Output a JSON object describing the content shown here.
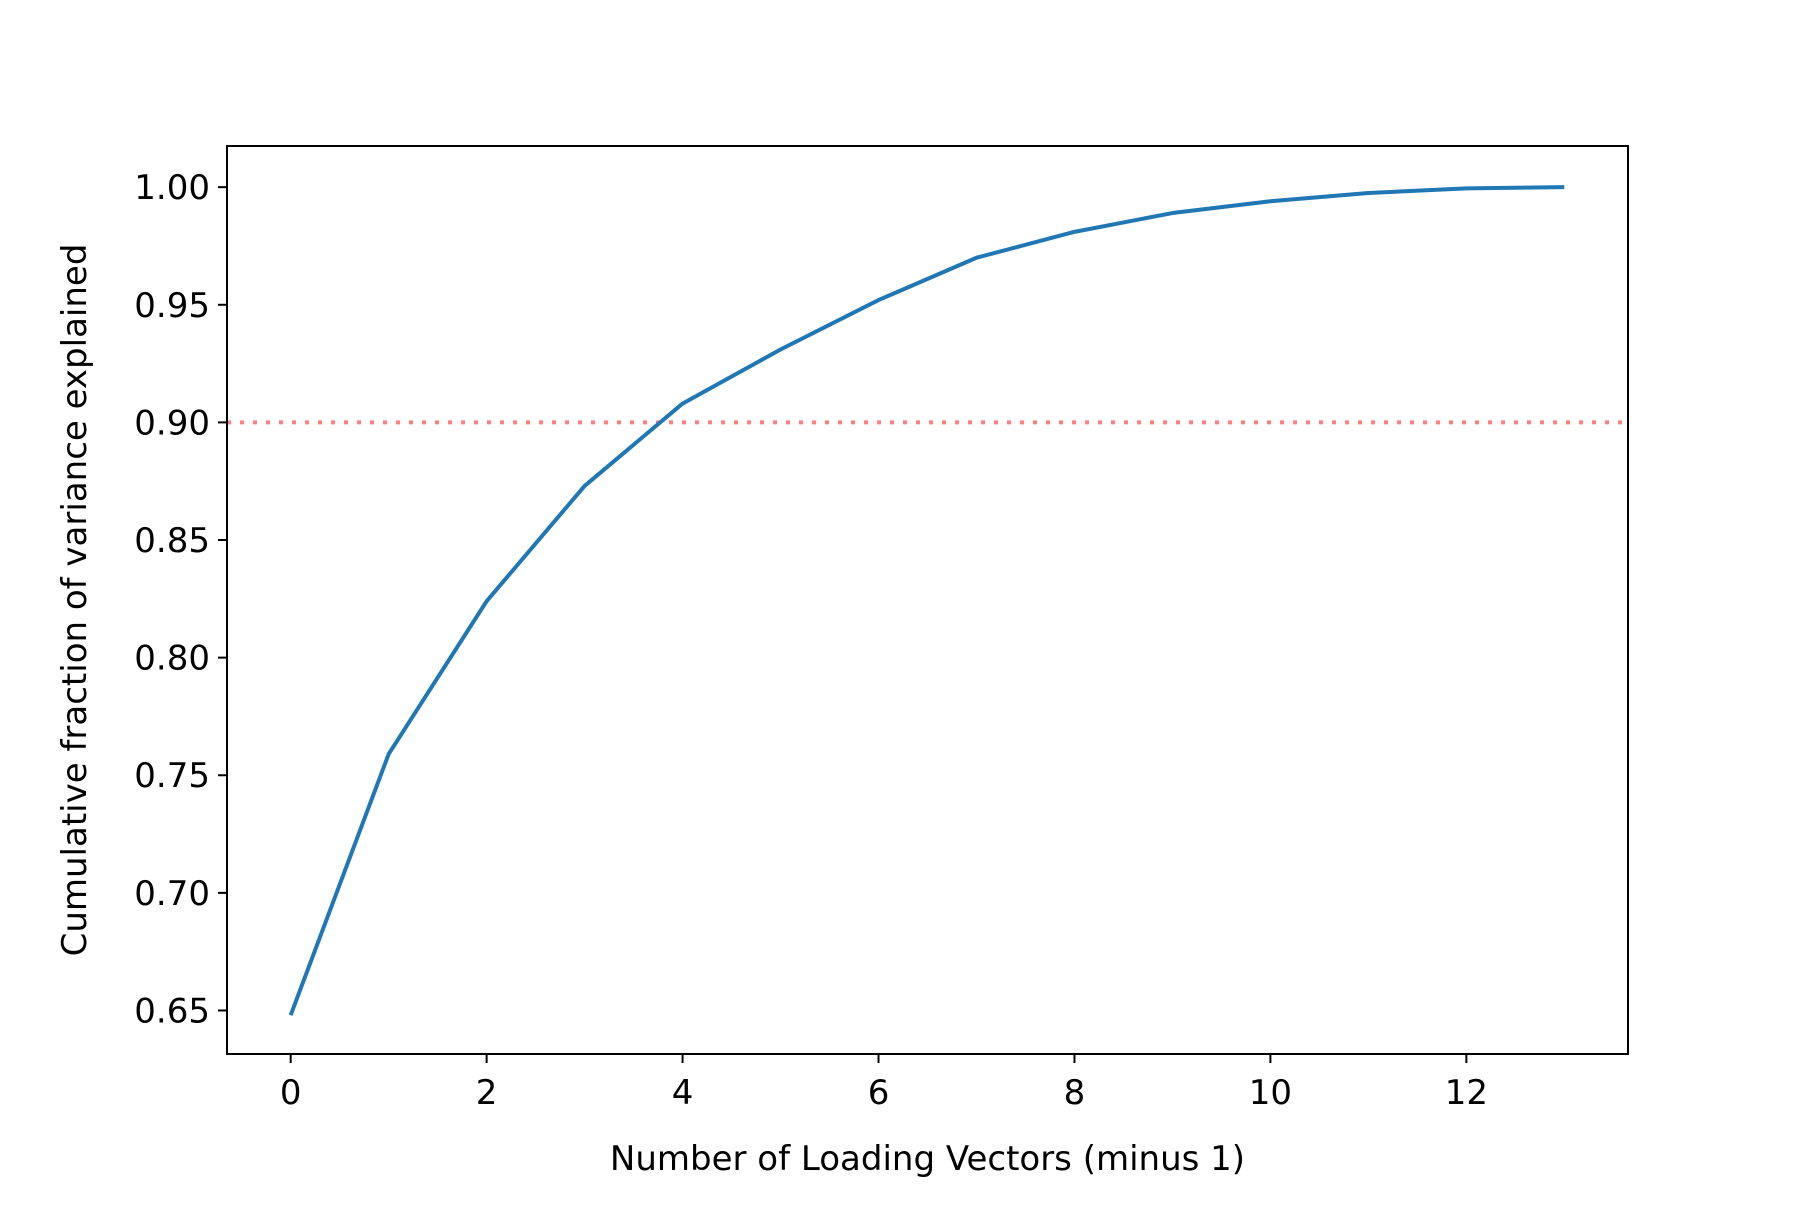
{
  "chart_data": {
    "type": "line",
    "title": "",
    "xlabel": "Number of Loading Vectors (minus 1)",
    "ylabel": "Cumulative fraction of variance explained",
    "xlim": [
      -0.65,
      13.65
    ],
    "ylim": [
      0.6315,
      1.0175
    ],
    "xticks": [
      0,
      2,
      4,
      6,
      8,
      10,
      12
    ],
    "xtick_labels": [
      "0",
      "2",
      "4",
      "6",
      "8",
      "10",
      "12"
    ],
    "yticks": [
      0.65,
      0.7,
      0.75,
      0.8,
      0.85,
      0.9,
      0.95,
      1.0
    ],
    "ytick_labels": [
      "0.65",
      "0.70",
      "0.75",
      "0.80",
      "0.85",
      "0.90",
      "0.95",
      "1.00"
    ],
    "grid": false,
    "legend": "none",
    "series": [
      {
        "color": "#1f77b4",
        "x": [
          0,
          1,
          2,
          3,
          4,
          5,
          6,
          7,
          8,
          9,
          10,
          11,
          12,
          13
        ],
        "y": [
          0.648,
          0.759,
          0.824,
          0.873,
          0.908,
          0.931,
          0.952,
          0.97,
          0.981,
          0.989,
          0.994,
          0.9975,
          0.9995,
          1.0
        ]
      }
    ],
    "reference_lines": [
      {
        "orientation": "horizontal",
        "y": 0.9,
        "style": "dotted",
        "color": "#ff7f7f"
      }
    ]
  }
}
